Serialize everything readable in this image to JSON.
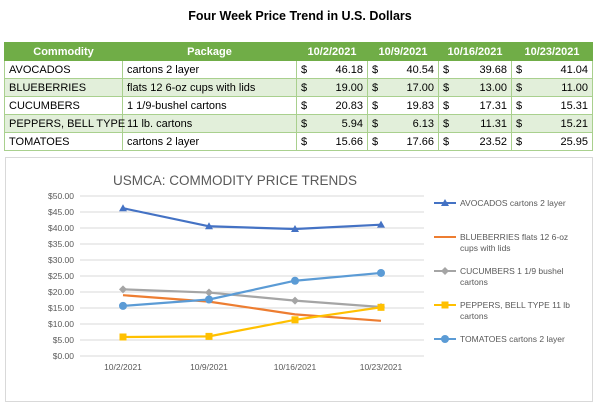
{
  "page_title": "Four Week Price Trend in U.S. Dollars",
  "table": {
    "headers": {
      "commodity": "Commodity",
      "package": "Package",
      "weeks": [
        "10/2/2021",
        "10/9/2021",
        "10/16/2021",
        "10/23/2021"
      ]
    },
    "currency_symbol": "$",
    "rows": [
      {
        "commodity": "AVOCADOS",
        "package": "cartons 2 layer",
        "prices": [
          "46.18",
          "40.54",
          "39.68",
          "41.04"
        ]
      },
      {
        "commodity": "BLUEBERRIES",
        "package": "flats 12 6-oz cups with lids",
        "prices": [
          "19.00",
          "17.00",
          "13.00",
          "11.00"
        ]
      },
      {
        "commodity": "CUCUMBERS",
        "package": "1 1/9-bushel cartons",
        "prices": [
          "20.83",
          "19.83",
          "17.31",
          "15.31"
        ]
      },
      {
        "commodity": "PEPPERS, BELL TYPE",
        "package": "11 lb. cartons",
        "prices": [
          "5.94",
          "6.13",
          "11.31",
          "15.21"
        ]
      },
      {
        "commodity": "TOMATOES",
        "package": "cartons 2 layer",
        "prices": [
          "15.66",
          "17.66",
          "23.52",
          "25.95"
        ]
      }
    ],
    "colors": {
      "header": "#70ad47",
      "stripe": "#e2efda",
      "border": "#a9d08e"
    }
  },
  "chart_data": {
    "type": "line",
    "title": "USMCA: COMMODITY PRICE TRENDS",
    "xlabel": "",
    "ylabel": "",
    "categories": [
      "10/2/2021",
      "10/9/2021",
      "10/16/2021",
      "10/23/2021"
    ],
    "ylim": [
      0,
      50
    ],
    "yticks": [
      "$0.00",
      "$5.00",
      "$10.00",
      "$15.00",
      "$20.00",
      "$25.00",
      "$30.00",
      "$35.00",
      "$40.00",
      "$45.00",
      "$50.00"
    ],
    "grid": true,
    "legend_position": "right",
    "series": [
      {
        "name": "AVOCADOS cartons 2 layer",
        "legend_lines": [
          "AVOCADOS cartons 2 layer"
        ],
        "values": [
          46.18,
          40.54,
          39.68,
          41.04
        ],
        "color": "#4472c4",
        "marker": "triangle"
      },
      {
        "name": "BLUEBERRIES flats 12 6-oz cups with lids",
        "legend_lines": [
          "BLUEBERRIES flats 12 6-oz",
          "cups with lids"
        ],
        "values": [
          19.0,
          17.0,
          13.0,
          11.0
        ],
        "color": "#ed7d31",
        "marker": "none"
      },
      {
        "name": "CUCUMBERS 1 1/9 bushel cartons",
        "legend_lines": [
          "CUCUMBERS 1 1/9 bushel",
          "cartons"
        ],
        "values": [
          20.83,
          19.83,
          17.31,
          15.31
        ],
        "color": "#a5a5a5",
        "marker": "diamond"
      },
      {
        "name": "PEPPERS, BELL TYPE 11 lb cartons",
        "legend_lines": [
          "PEPPERS, BELL TYPE 11 lb",
          "cartons"
        ],
        "values": [
          5.94,
          6.13,
          11.31,
          15.21
        ],
        "color": "#ffc000",
        "marker": "square"
      },
      {
        "name": "TOMATOES cartons 2 layer",
        "legend_lines": [
          "TOMATOES cartons 2 layer"
        ],
        "values": [
          15.66,
          17.66,
          23.52,
          25.95
        ],
        "color": "#5b9bd5",
        "marker": "circle"
      }
    ]
  }
}
